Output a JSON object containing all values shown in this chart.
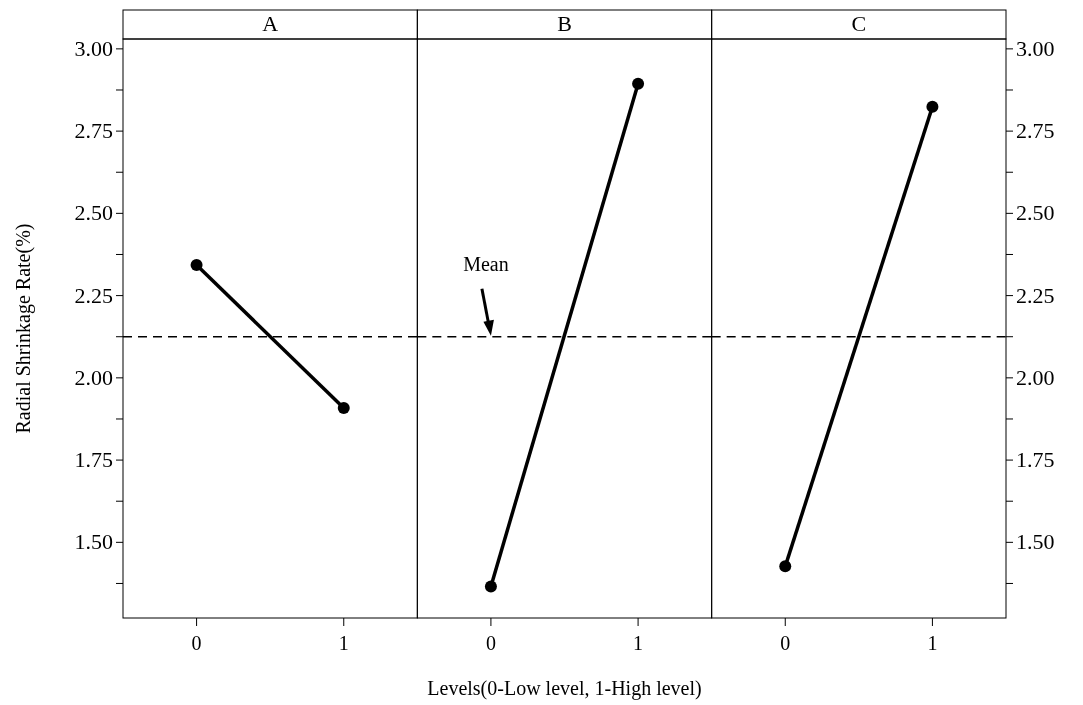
{
  "chart_data": [
    {
      "type": "line",
      "title": "A",
      "ylabel": "Radial Shrinkage Rate(%)",
      "categories": [
        "0",
        "1"
      ],
      "marker": "circle",
      "line_style": "solid",
      "series": [
        {
          "color": "#000000",
          "values": [
            2.343,
            1.908
          ]
        }
      ],
      "ylim": [
        1.27,
        3.03
      ],
      "yticks": [
        {
          "value": 1.375,
          "label": null
        },
        {
          "value": 1.5,
          "label": "1.50"
        },
        {
          "value": 1.625,
          "label": null
        },
        {
          "value": 1.75,
          "label": "1.75"
        },
        {
          "value": 1.875,
          "label": null
        },
        {
          "value": 2,
          "label": "2.00"
        },
        {
          "value": 2.125,
          "label": null
        },
        {
          "value": 2.25,
          "label": "2.25"
        },
        {
          "value": 2.375,
          "label": null
        },
        {
          "value": 2.5,
          "label": "2.50"
        },
        {
          "value": 2.625,
          "label": null
        },
        {
          "value": 2.75,
          "label": "2.75"
        },
        {
          "value": 2.875,
          "label": null
        },
        {
          "value": 3,
          "label": "3.00"
        }
      ],
      "ref_lines": [
        {
          "axis": "y",
          "value": 2.125,
          "line_style": "dashed",
          "color": "#000000"
        }
      ]
    },
    {
      "type": "line",
      "title": "B",
      "xlabel": "Levels(0-Low level, 1-High level)",
      "categories": [
        "0",
        "1"
      ],
      "marker": "circle",
      "line_style": "solid",
      "tick_labels": "x",
      "series": [
        {
          "color": "#000000",
          "values": [
            1.366,
            2.894
          ]
        }
      ],
      "ylim": [
        1.27,
        3.03
      ],
      "ref_lines": [
        {
          "axis": "y",
          "value": 2.125,
          "line_style": "dashed",
          "color": "#000000",
          "label": "Mean"
        }
      ]
    },
    {
      "type": "line",
      "title": "C",
      "categories": [
        "0",
        "1"
      ],
      "marker": "circle",
      "line_style": "solid",
      "series": [
        {
          "color": "#000000",
          "values": [
            1.427,
            2.824
          ],
          "axis": "y2"
        }
      ],
      "y2lim": [
        1.27,
        3.03
      ],
      "y2ticks": [
        {
          "value": 1.375,
          "label": null
        },
        {
          "value": 1.5,
          "label": "1.50"
        },
        {
          "value": 1.625,
          "label": null
        },
        {
          "value": 1.75,
          "label": "1.75"
        },
        {
          "value": 1.875,
          "label": null
        },
        {
          "value": 2,
          "label": "2.00"
        },
        {
          "value": 2.125,
          "label": null
        },
        {
          "value": 2.25,
          "label": "2.25"
        },
        {
          "value": 2.375,
          "label": null
        },
        {
          "value": 2.5,
          "label": "2.50"
        },
        {
          "value": 2.625,
          "label": null
        },
        {
          "value": 2.75,
          "label": "2.75"
        },
        {
          "value": 2.875,
          "label": null
        },
        {
          "value": 3,
          "label": "3.00"
        }
      ],
      "ref_lines": [
        {
          "axis": "y2",
          "value": 2.125,
          "line_style": "dashed",
          "color": "#000000"
        }
      ]
    }
  ]
}
